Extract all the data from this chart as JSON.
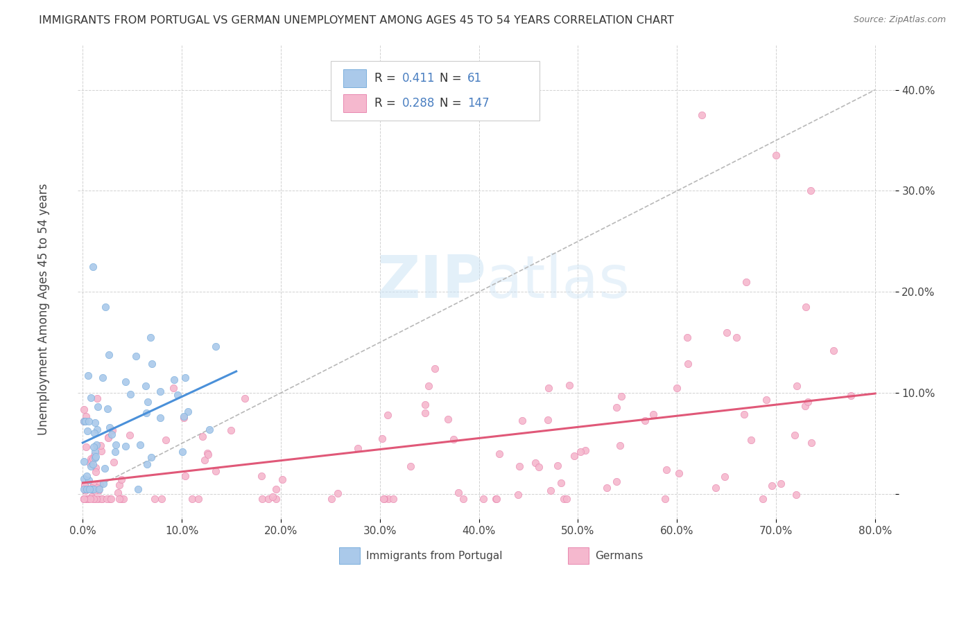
{
  "title": "IMMIGRANTS FROM PORTUGAL VS GERMAN UNEMPLOYMENT AMONG AGES 45 TO 54 YEARS CORRELATION CHART",
  "source": "Source: ZipAtlas.com",
  "ylabel": "Unemployment Among Ages 45 to 54 years",
  "xlim": [
    -0.005,
    0.82
  ],
  "ylim": [
    -0.025,
    0.445
  ],
  "xticks": [
    0.0,
    0.1,
    0.2,
    0.3,
    0.4,
    0.5,
    0.6,
    0.7,
    0.8
  ],
  "yticks": [
    0.0,
    0.1,
    0.2,
    0.3,
    0.4
  ],
  "ytick_labels": [
    "",
    "10.0%",
    "20.0%",
    "30.0%",
    "40.0%"
  ],
  "watermark": "ZIPatlas",
  "legend_text_color": "#4a7fc1",
  "legend_label_color": "#333333",
  "blue_color": "#aac9ea",
  "blue_edge": "#7aaedc",
  "blue_line": "#4a90d9",
  "pink_color": "#f5b8ce",
  "pink_edge": "#e888b0",
  "pink_line": "#e05878",
  "gray_dash": "#b8b8b8",
  "R_blue": 0.411,
  "N_blue": 61,
  "R_pink": 0.288,
  "N_pink": 147
}
